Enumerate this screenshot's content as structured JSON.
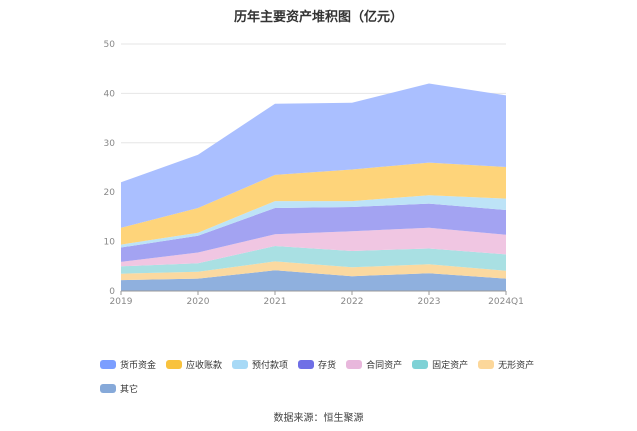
{
  "chart_data": {
    "type": "area",
    "stacked": true,
    "title": "历年主要资产堆积图（亿元）",
    "categories": [
      "2019",
      "2020",
      "2021",
      "2022",
      "2023",
      "2024Q1"
    ],
    "yticks": [
      "0",
      "10",
      "20",
      "30",
      "40",
      "50"
    ],
    "ylim": [
      0,
      50
    ],
    "grid": true,
    "legend_position": "bottom",
    "series": [
      {
        "name": "其它",
        "color": "#8fb0de",
        "values": [
          2.2,
          2.5,
          4.2,
          3.0,
          3.6,
          2.5
        ]
      },
      {
        "name": "无形资产",
        "color": "#fbd9a0",
        "values": [
          1.3,
          1.4,
          1.8,
          1.8,
          1.8,
          1.6
        ]
      },
      {
        "name": "固定资产",
        "color": "#a9e0e3",
        "values": [
          1.5,
          1.7,
          3.1,
          3.3,
          3.2,
          3.3
        ]
      },
      {
        "name": "合同资产",
        "color": "#f0c6e2",
        "values": [
          0.9,
          2.2,
          2.4,
          4.0,
          4.2,
          4.0
        ]
      },
      {
        "name": "存货",
        "color": "#a3a3f2",
        "values": [
          2.9,
          3.4,
          5.3,
          4.9,
          4.9,
          5.0
        ]
      },
      {
        "name": "预付款项",
        "color": "#bde3f7",
        "values": [
          0.6,
          0.6,
          1.4,
          1.2,
          1.7,
          2.3
        ]
      },
      {
        "name": "应收账款",
        "color": "#fed47a",
        "values": [
          3.4,
          5.0,
          5.3,
          6.4,
          6.6,
          6.4
        ]
      },
      {
        "name": "货币资金",
        "color": "#aabfff",
        "values": [
          9.2,
          10.8,
          14.4,
          13.5,
          16.0,
          14.5
        ]
      }
    ]
  },
  "legend_order": [
    "货币资金",
    "应收账款",
    "预付款项",
    "存货",
    "合同资产",
    "固定资产",
    "无形资产",
    "其它"
  ],
  "legend_colors": [
    "#7b9eff",
    "#f8c23d",
    "#a7d9f6",
    "#6f6fe6",
    "#e8b7dc",
    "#7fd2d6",
    "#fcd79a",
    "#86a9d9"
  ],
  "source": "数据来源：恒生聚源"
}
